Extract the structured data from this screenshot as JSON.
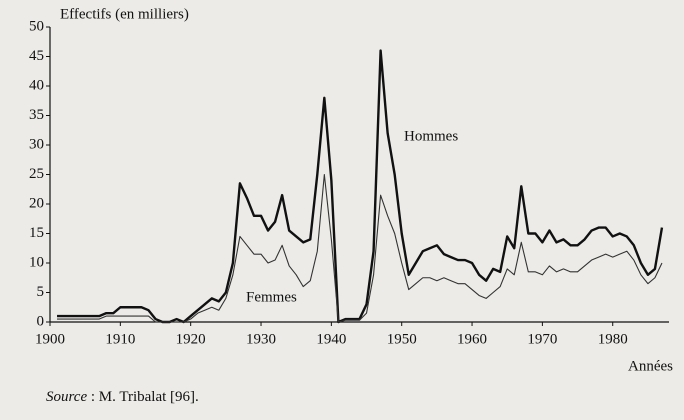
{
  "chart_data": {
    "type": "line",
    "y_label": "Effectifs (en milliers)",
    "x_label": "Années",
    "source_label": "Source",
    "source_text": " : M. Tribalat [96].",
    "x": [
      1901,
      1902,
      1903,
      1904,
      1905,
      1906,
      1907,
      1908,
      1909,
      1910,
      1911,
      1912,
      1913,
      1914,
      1915,
      1916,
      1917,
      1918,
      1919,
      1920,
      1921,
      1922,
      1923,
      1924,
      1925,
      1926,
      1927,
      1928,
      1929,
      1930,
      1931,
      1932,
      1933,
      1934,
      1935,
      1936,
      1937,
      1938,
      1939,
      1940,
      1941,
      1942,
      1943,
      1944,
      1945,
      1946,
      1947,
      1948,
      1949,
      1950,
      1951,
      1952,
      1953,
      1954,
      1955,
      1956,
      1957,
      1958,
      1959,
      1960,
      1961,
      1962,
      1963,
      1964,
      1965,
      1966,
      1967,
      1968,
      1969,
      1970,
      1971,
      1972,
      1973,
      1974,
      1975,
      1976,
      1977,
      1978,
      1979,
      1980,
      1981,
      1982,
      1983,
      1984,
      1985,
      1986,
      1987
    ],
    "series": [
      {
        "name": "Hommes",
        "color": "#111111",
        "width": 2.4,
        "values": [
          1,
          1,
          1,
          1,
          1,
          1,
          1,
          1.5,
          1.5,
          2.5,
          2.5,
          2.5,
          2.5,
          2,
          0.5,
          0,
          0,
          0.5,
          0,
          1,
          2,
          3,
          4,
          3.5,
          5,
          10,
          23.5,
          21,
          18,
          18,
          15.5,
          17,
          21.5,
          15.5,
          14.5,
          13.5,
          14,
          25,
          38,
          24,
          0,
          0.5,
          0.5,
          0.5,
          3,
          12,
          46,
          32,
          25,
          15,
          8,
          10,
          12,
          12.5,
          13,
          11.5,
          11,
          10.5,
          10.5,
          10,
          8,
          7,
          9,
          8.5,
          14.5,
          12.5,
          23,
          15,
          15,
          13.5,
          15.5,
          13.5,
          14,
          13,
          13,
          14,
          15.5,
          16,
          16,
          14.5,
          15,
          14.5,
          13,
          10,
          8,
          9,
          16
        ]
      },
      {
        "name": "Femmes",
        "color": "#333333",
        "width": 1.1,
        "values": [
          0.5,
          0.5,
          0.5,
          0.5,
          0.5,
          0.5,
          0.5,
          1,
          1,
          1,
          1,
          1,
          1,
          1,
          0,
          0,
          0,
          0,
          0,
          0.5,
          1.5,
          2,
          2.5,
          2,
          4,
          8,
          14.5,
          13,
          11.5,
          11.5,
          10,
          10.5,
          13,
          9.5,
          8,
          6,
          7,
          12,
          25,
          14,
          0,
          0.3,
          0.3,
          0.3,
          1.5,
          8,
          21.5,
          18,
          15,
          10,
          5.5,
          6.5,
          7.5,
          7.5,
          7,
          7.5,
          7,
          6.5,
          6.5,
          5.5,
          4.5,
          4,
          5,
          6,
          9,
          8,
          13.5,
          8.5,
          8.5,
          8,
          9.5,
          8.5,
          9,
          8.5,
          8.5,
          9.5,
          10.5,
          11,
          11.5,
          11,
          11.5,
          12,
          10.5,
          8,
          6.5,
          7.5,
          10
        ]
      }
    ],
    "xlim": [
      1900,
      1988
    ],
    "ylim": [
      0,
      50
    ],
    "xticks": [
      1900,
      1910,
      1920,
      1930,
      1940,
      1950,
      1960,
      1970,
      1980
    ],
    "yticks": [
      0,
      5,
      10,
      15,
      20,
      25,
      30,
      35,
      40,
      45,
      50
    ]
  }
}
